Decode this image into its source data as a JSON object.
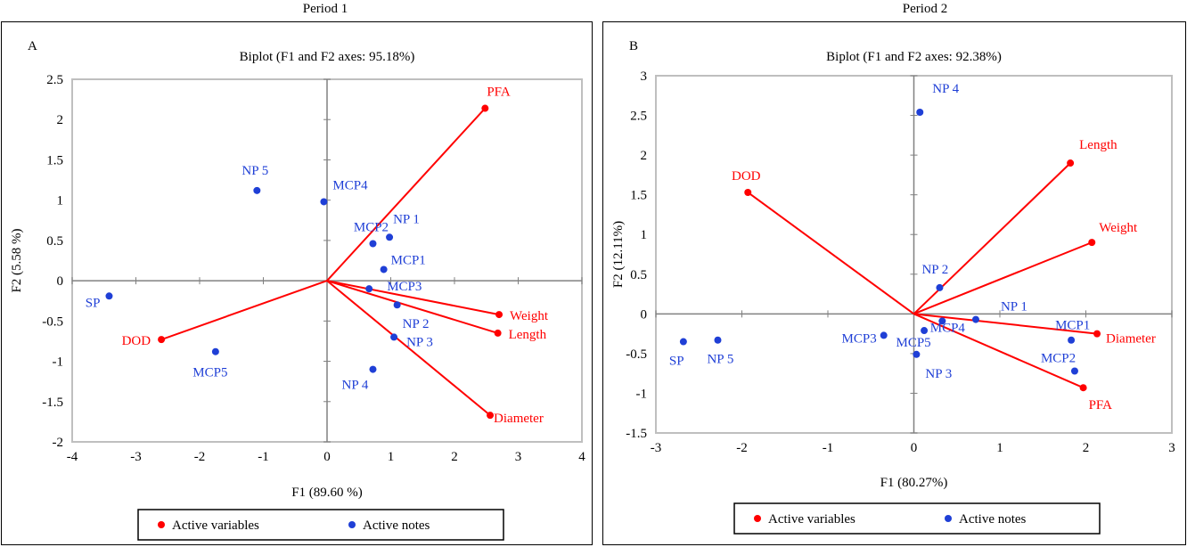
{
  "page": {
    "period_titles": [
      "Period 1",
      "Period 2"
    ]
  },
  "colors": {
    "variables": "#ff0000",
    "observations": "#1f3fd6",
    "plot_border": "#bfbfbf",
    "axis": "#808080"
  },
  "chart_data": [
    {
      "type": "scatter",
      "panel_label": "A",
      "title": "Biplot (F1 and F2 axes: 95.18%)",
      "xlabel": "F1 (89.60 %)",
      "ylabel": "F2 (5.58 %)",
      "xlim": [
        -4,
        4
      ],
      "ylim": [
        -2,
        2.5
      ],
      "xticks": [
        -4,
        -3,
        -2,
        -1,
        0,
        1,
        2,
        3,
        4
      ],
      "yticks": [
        -2,
        -1.5,
        -1,
        -0.5,
        0,
        0.5,
        1,
        1.5,
        2,
        2.5
      ],
      "grid": false,
      "legend_position": "bottom",
      "legend": [
        "Active variables",
        "Active notes"
      ],
      "series": [
        {
          "name": "Active variables",
          "color": "#ff0000",
          "points": [
            {
              "label": "PFA",
              "x": 2.48,
              "y": 2.14
            },
            {
              "label": "Weight",
              "x": 2.7,
              "y": -0.42
            },
            {
              "label": "Length",
              "x": 2.68,
              "y": -0.65
            },
            {
              "label": "Diameter",
              "x": 2.56,
              "y": -1.67
            },
            {
              "label": "DOD",
              "x": -2.6,
              "y": -0.73
            }
          ]
        },
        {
          "name": "Active notes",
          "color": "#1f3fd6",
          "points": [
            {
              "label": "NP 5",
              "x": -1.1,
              "y": 1.12
            },
            {
              "label": "MCP4",
              "x": -0.05,
              "y": 0.98
            },
            {
              "label": "MCP2",
              "x": 0.72,
              "y": 0.46
            },
            {
              "label": "NP 1",
              "x": 0.98,
              "y": 0.54
            },
            {
              "label": "MCP1",
              "x": 0.89,
              "y": 0.14
            },
            {
              "label": "MCP3",
              "x": 0.66,
              "y": -0.1
            },
            {
              "label": "NP 2",
              "x": 1.1,
              "y": -0.3
            },
            {
              "label": "NP 3",
              "x": 1.05,
              "y": -0.7
            },
            {
              "label": "NP 4",
              "x": 0.72,
              "y": -1.1
            },
            {
              "label": "SP",
              "x": -3.42,
              "y": -0.19
            },
            {
              "label": "MCP5",
              "x": -1.75,
              "y": -0.88
            }
          ]
        }
      ]
    },
    {
      "type": "scatter",
      "panel_label": "B",
      "title": "Biplot (F1 and F2 axes: 92.38%)",
      "xlabel": "F1 (80.27%)",
      "ylabel": "F2 (12.11%)",
      "xlim": [
        -3,
        3
      ],
      "ylim": [
        -1.5,
        3
      ],
      "xticks": [
        -3,
        -2,
        -1,
        0,
        1,
        2,
        3
      ],
      "yticks": [
        -1.5,
        -1,
        -0.5,
        0,
        0.5,
        1,
        1.5,
        2,
        2.5,
        3
      ],
      "grid": false,
      "legend_position": "bottom",
      "legend": [
        "Active variables",
        "Active notes"
      ],
      "series": [
        {
          "name": "Active variables",
          "color": "#ff0000",
          "points": [
            {
              "label": "DOD",
              "x": -1.93,
              "y": 1.53
            },
            {
              "label": "Length",
              "x": 1.82,
              "y": 1.9
            },
            {
              "label": "Weight",
              "x": 2.07,
              "y": 0.9
            },
            {
              "label": "Diameter",
              "x": 2.13,
              "y": -0.25
            },
            {
              "label": "PFA",
              "x": 1.97,
              "y": -0.93
            }
          ]
        },
        {
          "name": "Active notes",
          "color": "#1f3fd6",
          "points": [
            {
              "label": "NP 4",
              "x": 0.07,
              "y": 2.54
            },
            {
              "label": "NP 2",
              "x": 0.3,
              "y": 0.33
            },
            {
              "label": "NP 1",
              "x": 0.72,
              "y": -0.07
            },
            {
              "label": "MCP4",
              "x": 0.33,
              "y": -0.09
            },
            {
              "label": "MCP5",
              "x": 0.12,
              "y": -0.21
            },
            {
              "label": "MCP3",
              "x": -0.35,
              "y": -0.27
            },
            {
              "label": "NP 3",
              "x": 0.03,
              "y": -0.51
            },
            {
              "label": "MCP1",
              "x": 1.83,
              "y": -0.33
            },
            {
              "label": "MCP2",
              "x": 1.87,
              "y": -0.72
            },
            {
              "label": "SP",
              "x": -2.68,
              "y": -0.35
            },
            {
              "label": "NP 5",
              "x": -2.28,
              "y": -0.33
            }
          ]
        }
      ]
    }
  ]
}
